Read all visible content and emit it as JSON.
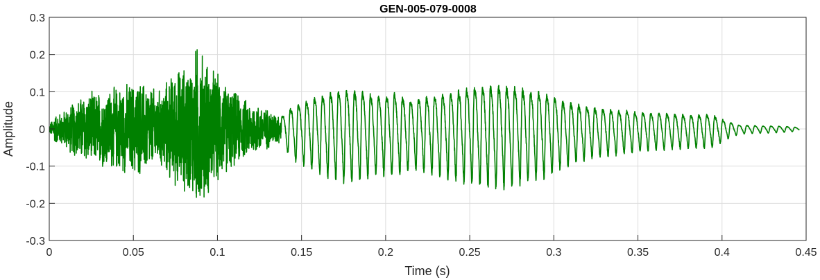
{
  "chart_data": {
    "type": "line",
    "title": "GEN-005-079-0008",
    "xlabel": "Time (s)",
    "ylabel": "Amplitude",
    "xlim": [
      0,
      0.45
    ],
    "ylim": [
      -0.3,
      0.3
    ],
    "xticks": [
      0,
      0.05,
      0.1,
      0.15,
      0.2,
      0.25,
      0.3,
      0.35,
      0.4,
      0.45
    ],
    "xtick_labels": [
      "0",
      "0.05",
      "0.1",
      "0.15",
      "0.2",
      "0.25",
      "0.3",
      "0.35",
      "0.4",
      "0.45"
    ],
    "yticks": [
      0.3,
      0.2,
      0.1,
      0,
      -0.1,
      -0.2,
      -0.3
    ],
    "ytick_labels": [
      "0.3",
      "0.2",
      "0.1",
      "0",
      "-0.1",
      "-0.2",
      "-0.3"
    ],
    "grid": true,
    "series": [
      {
        "color": "#008000",
        "envelope_t": [
          0.0,
          0.003,
          0.008,
          0.015,
          0.02,
          0.03,
          0.045,
          0.055,
          0.065,
          0.075,
          0.085,
          0.088,
          0.095,
          0.105,
          0.115,
          0.125,
          0.133,
          0.138,
          0.145,
          0.155,
          0.165,
          0.175,
          0.185,
          0.195,
          0.205,
          0.215,
          0.225,
          0.235,
          0.245,
          0.255,
          0.265,
          0.275,
          0.285,
          0.295,
          0.305,
          0.315,
          0.325,
          0.335,
          0.345,
          0.355,
          0.365,
          0.375,
          0.385,
          0.39,
          0.395,
          0.4,
          0.405,
          0.41,
          0.42,
          0.43,
          0.44,
          0.446
        ],
        "envelope_a": [
          0.01,
          0.04,
          0.05,
          0.08,
          0.1,
          0.11,
          0.13,
          0.14,
          0.11,
          0.17,
          0.2,
          0.25,
          0.19,
          0.13,
          0.09,
          0.07,
          0.05,
          0.04,
          0.07,
          0.09,
          0.11,
          0.12,
          0.12,
          0.1,
          0.11,
          0.09,
          0.1,
          0.11,
          0.12,
          0.13,
          0.135,
          0.13,
          0.12,
          0.11,
          0.09,
          0.075,
          0.065,
          0.06,
          0.055,
          0.05,
          0.048,
          0.045,
          0.043,
          0.045,
          0.042,
          0.03,
          0.02,
          0.012,
          0.01,
          0.009,
          0.007,
          0.004
        ],
        "noise_end": 0.138,
        "tone_hz": 210
      }
    ]
  }
}
